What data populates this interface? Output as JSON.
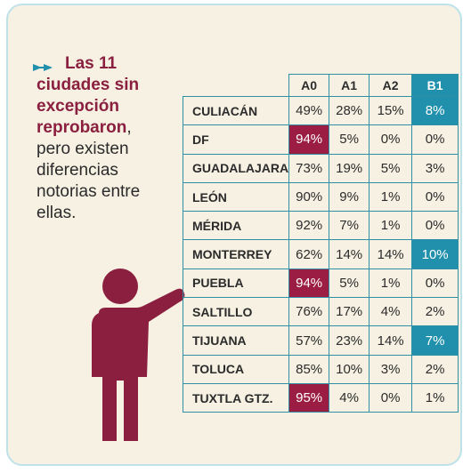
{
  "headline": {
    "lines_bold": [
      "Las 11",
      "ciudades sin",
      "excepción",
      "reprobaron"
    ],
    "comma": ",",
    "lines_rest": [
      "pero existen",
      "diferencias",
      "notorias entre",
      "ellas."
    ]
  },
  "table": {
    "columns": [
      "A0",
      "A1",
      "A2",
      "B1"
    ],
    "rows": [
      {
        "city": "CULIACÁN",
        "values": [
          "49%",
          "28%",
          "15%",
          "8%"
        ]
      },
      {
        "city": "DF",
        "values": [
          "94%",
          "5%",
          "0%",
          "0%"
        ]
      },
      {
        "city": "GUADALAJARA",
        "values": [
          "73%",
          "19%",
          "5%",
          "3%"
        ]
      },
      {
        "city": "LEÓN",
        "values": [
          "90%",
          "9%",
          "1%",
          "0%"
        ]
      },
      {
        "city": "MÉRIDA",
        "values": [
          "92%",
          "7%",
          "1%",
          "0%"
        ]
      },
      {
        "city": "MONTERREY",
        "values": [
          "62%",
          "14%",
          "14%",
          "10%"
        ]
      },
      {
        "city": "PUEBLA",
        "values": [
          "94%",
          "5%",
          "1%",
          "0%"
        ]
      },
      {
        "city": "SALTILLO",
        "values": [
          "76%",
          "17%",
          "4%",
          "2%"
        ]
      },
      {
        "city": "TIJUANA",
        "values": [
          "57%",
          "23%",
          "14%",
          "7%"
        ]
      },
      {
        "city": "TOLUCA",
        "values": [
          "85%",
          "10%",
          "3%",
          "2%"
        ]
      },
      {
        "city": "TUXTLA GTZ.",
        "values": [
          "95%",
          "4%",
          "0%",
          "1%"
        ]
      }
    ]
  },
  "colors": {
    "background": "#f6f1e3",
    "frame_border": "#bfe1ea",
    "accent_red": "#9b1d44",
    "accent_blue": "#2090ad",
    "figure": "#8b1f3f"
  }
}
